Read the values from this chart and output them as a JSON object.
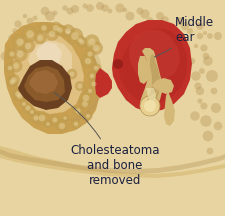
{
  "background_color": "#ffffff",
  "fig_width": 2.25,
  "fig_height": 2.16,
  "dpi": 100,
  "bone_color": "#e8d4a0",
  "bone_mid": "#d4b870",
  "bone_dark": "#b8965a",
  "bone_pore": "#c4a050",
  "mastoid_fill": "#c8a050",
  "mastoid_light": "#dfc080",
  "mastoid_highlight": "#e8d0a0",
  "cholest_dark": "#6b4020",
  "cholest_mid": "#8b5a2a",
  "cholest_light": "#a87040",
  "middle_ear_color": "#c03028",
  "middle_ear_dark": "#a82020",
  "middle_ear_light": "#c84038",
  "ossicle_body": "#d4b878",
  "ossicle_light": "#e8d090",
  "ossicle_shadow": "#b09050",
  "label_color": "#1a2040",
  "label_fontsize": 8.5,
  "arrow_color": "#555555",
  "label_middle_ear": "Middle\near",
  "label_cholesteatoma": "Cholesteatoma\nand bone\nremoved",
  "bottom_bone_color": "#d4b870",
  "bottom_bone_inner": "#c8a858"
}
